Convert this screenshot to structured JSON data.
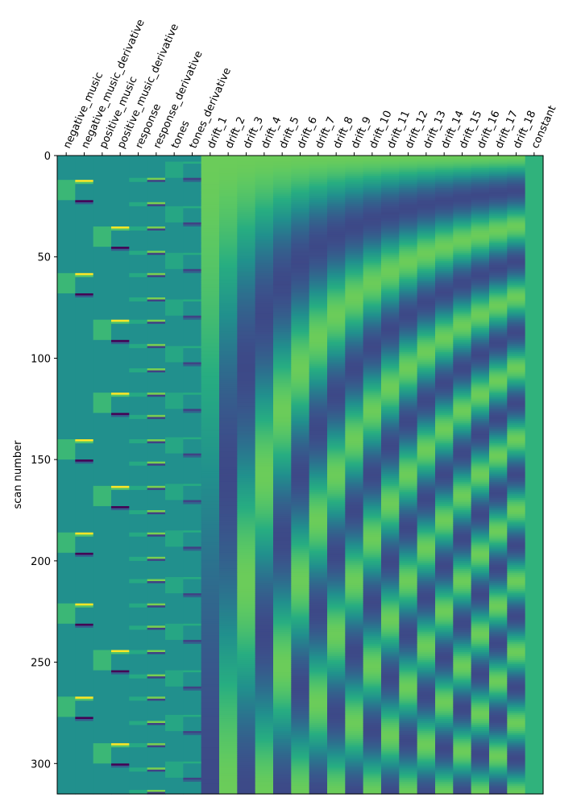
{
  "chart_data": {
    "type": "heatmap",
    "title": "",
    "xlabel": "",
    "ylabel": "scan number",
    "ylim": [
      0,
      315
    ],
    "yticks": [
      0,
      50,
      100,
      150,
      200,
      250,
      300
    ],
    "n_scans": 315,
    "colormap": "viridis",
    "columns": [
      "negative_music",
      "negative_music_derivative",
      "positive_music",
      "positive_music_derivative",
      "response",
      "response_derivative",
      "tones",
      "tones_derivative",
      "drift_1",
      "drift_2",
      "drift_3",
      "drift_4",
      "drift_5",
      "drift_6",
      "drift_7",
      "drift_8",
      "drift_9",
      "drift_10",
      "drift_11",
      "drift_12",
      "drift_13",
      "drift_14",
      "drift_15",
      "drift_16",
      "drift_17",
      "drift_18",
      "constant"
    ],
    "condition_onsets": {
      "negative_music": [
        12,
        58,
        140,
        186,
        221,
        267
      ],
      "positive_music": [
        35,
        81,
        117,
        163,
        244,
        290
      ],
      "response": [
        11,
        23,
        35,
        47,
        58,
        70,
        81,
        93,
        105,
        117,
        128,
        140,
        151,
        163,
        175,
        186,
        198,
        209,
        221,
        232,
        244,
        256,
        267,
        279,
        290,
        302,
        313
      ],
      "tones": [
        3,
        25,
        48,
        71,
        94,
        117,
        139,
        162,
        185,
        208,
        231,
        254,
        276,
        299
      ]
    },
    "block_duration_scans": 10,
    "event_duration_scans": 1.5,
    "drift_model": "cosine",
    "n_drifts": 18
  }
}
